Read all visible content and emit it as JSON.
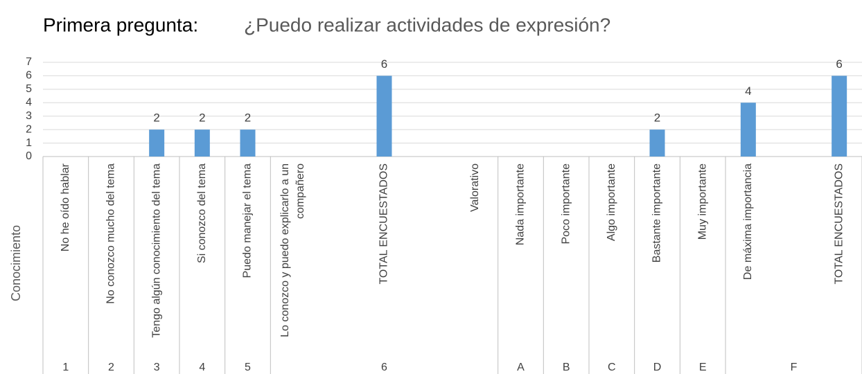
{
  "chart_data": {
    "type": "bar",
    "title": "Primera pregunta:",
    "subtitle": "¿Puedo realizar actividades de expresión?",
    "ylabel": "Conocimiento",
    "categories": [
      "No he oído hablar",
      "No conozco mucho del tema",
      "Tengo algún conocimiento del tema",
      "Si conozco del tema",
      "Puedo manejar el tema",
      "Lo conozco y puedo explicarlo a un compañero",
      null,
      "TOTAL ENCUESTADOS",
      null,
      "Valorativo",
      "Nada importante",
      "Poco importante",
      "Algo importante",
      "Bastante importante",
      "Muy importante",
      "De máxima importancia",
      null,
      "TOTAL ENCUESTADOS"
    ],
    "values": [
      null,
      null,
      2,
      2,
      2,
      null,
      null,
      6,
      null,
      null,
      null,
      null,
      null,
      2,
      null,
      4,
      null,
      6
    ],
    "groups": [
      {
        "label": "1",
        "size": 1
      },
      {
        "label": "2",
        "size": 1
      },
      {
        "label": "3",
        "size": 1
      },
      {
        "label": "4",
        "size": 1
      },
      {
        "label": "5",
        "size": 1
      },
      {
        "label": "6",
        "size": 5
      },
      {
        "label": "A",
        "size": 1
      },
      {
        "label": "B",
        "size": 1
      },
      {
        "label": "C",
        "size": 1
      },
      {
        "label": "D",
        "size": 1
      },
      {
        "label": "E",
        "size": 1
      },
      {
        "label": "F",
        "size": 3
      }
    ],
    "color": "#5b9bd5",
    "ylim": [
      0,
      7
    ],
    "yticks": [
      0,
      1,
      2,
      3,
      4,
      5,
      6,
      7
    ],
    "grid": true
  }
}
